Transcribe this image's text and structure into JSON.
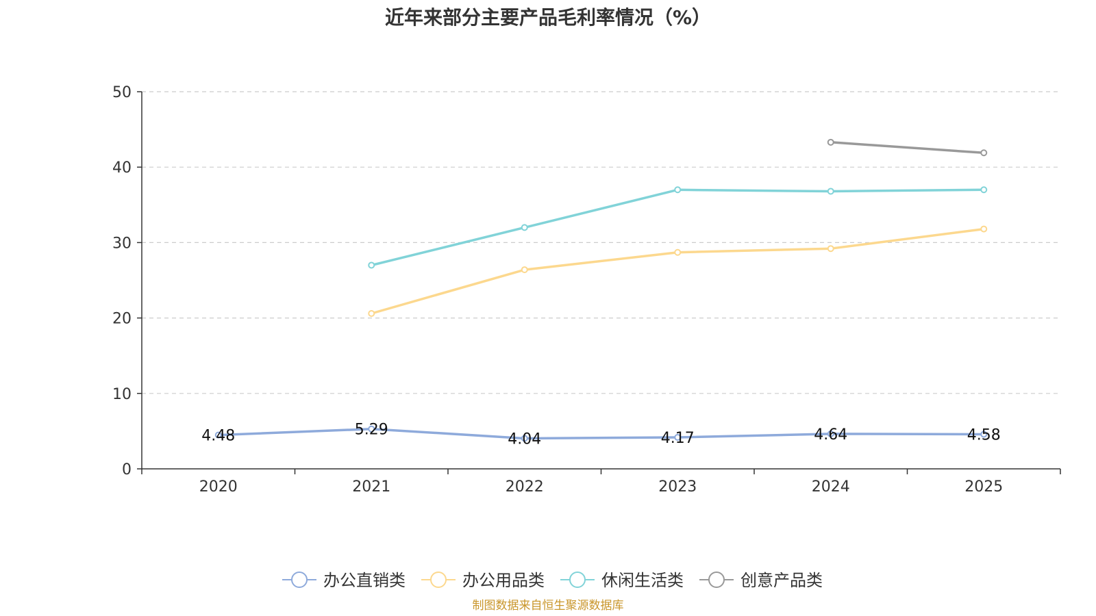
{
  "chart_data": {
    "type": "line",
    "title": "近年来部分主要产品毛利率情况（%）",
    "categories": [
      "2020",
      "2021",
      "2022",
      "2023",
      "2024",
      "2025"
    ],
    "ylim": [
      0,
      50
    ],
    "yticks": [
      "0",
      "10",
      "20",
      "30",
      "40",
      "50"
    ],
    "grid": true,
    "legend_position": "bottom",
    "series": [
      {
        "name": "办公直销类",
        "color": "#8eaadb",
        "values": [
          4.48,
          5.29,
          4.04,
          4.17,
          4.64,
          4.58
        ],
        "labels": [
          "4.48",
          "5.29",
          "4.04",
          "4.17",
          "4.64",
          "4.58"
        ]
      },
      {
        "name": "办公用品类",
        "color": "#fcd88e",
        "values": [
          null,
          20.6,
          26.4,
          28.7,
          29.2,
          31.8
        ]
      },
      {
        "name": "休闲生活类",
        "color": "#81d3d8",
        "values": [
          null,
          27.0,
          32.0,
          37.0,
          36.8,
          37.0
        ]
      },
      {
        "name": "创意产品类",
        "color": "#999999",
        "values": [
          null,
          null,
          null,
          null,
          43.3,
          41.9
        ]
      }
    ]
  },
  "source": "制图数据来自恒生聚源数据库"
}
